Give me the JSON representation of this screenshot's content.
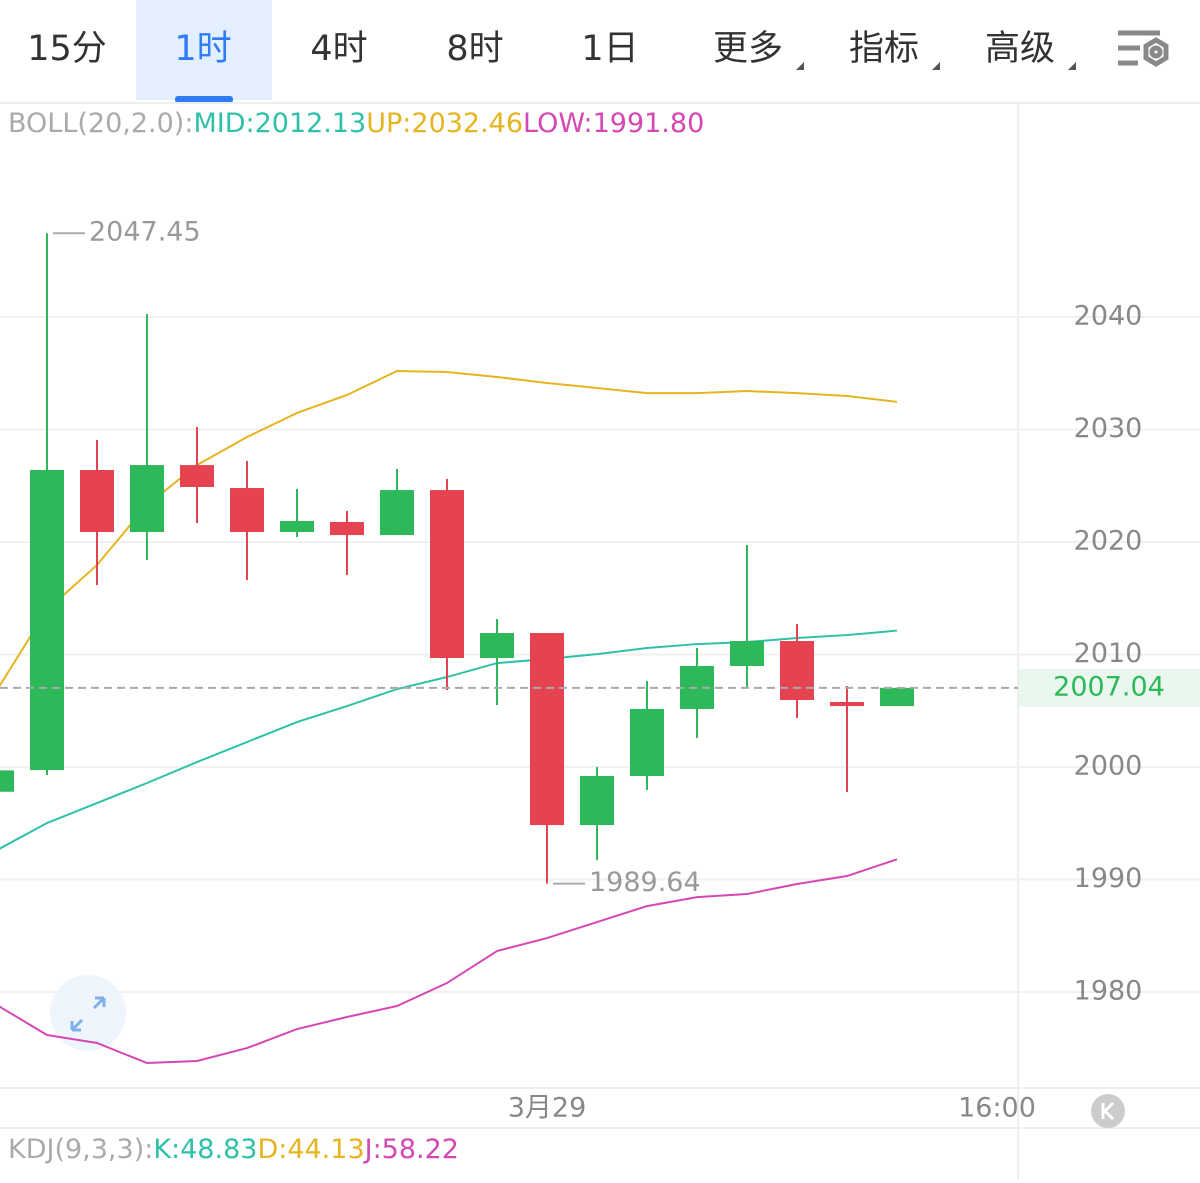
{
  "tabs": [
    "15分",
    "1时",
    "4时",
    "8时",
    "1日",
    "更多",
    "指标",
    "高级"
  ],
  "active_tab": 1,
  "indicator": {
    "name": "BOLL(20,2.0):"
  },
  "sub_indicator": {
    "name": "KDJ(9,3,3):",
    "items": [
      "K:48.83",
      "D:44.13",
      "J:58.22"
    ]
  },
  "chart_data": {
    "type": "candlestick",
    "categories": [
      null,
      null,
      null,
      null,
      null,
      null,
      null,
      null,
      null,
      null,
      null,
      "3月29",
      null,
      null,
      null,
      null,
      null,
      null,
      null,
      null,
      "16:00"
    ],
    "open": [
      1997.8,
      1999.73,
      2026.4,
      2020.89,
      2026.84,
      2024.8,
      2020.89,
      2021.78,
      2020.62,
      2024.62,
      2009.69,
      2011.91,
      1994.84,
      1999.2,
      2005.16,
      2008.98,
      2011.2,
      2005.78,
      2005.42,
      null,
      null
    ],
    "high": [
      1999.7,
      2047.45,
      2029.07,
      2040.27,
      2030.22,
      2027.2,
      2024.71,
      2022.76,
      2026.49,
      2025.6,
      2013.16,
      2011.91,
      2000,
      2007.64,
      2010.58,
      2019.73,
      2012.71,
      2007.2,
      2007.04,
      null,
      null
    ],
    "low": [
      1997.8,
      1999.29,
      2016.18,
      2018.4,
      2021.69,
      2016.62,
      2020.44,
      2017.07,
      2020.62,
      2006.84,
      2005.51,
      1989.64,
      1991.73,
      1997.96,
      2002.58,
      2007.11,
      2004.36,
      1997.78,
      2005.42,
      null,
      null
    ],
    "close": [
      1999.7,
      2026.4,
      2020.89,
      2026.84,
      2024.89,
      2020.89,
      2021.87,
      2020.62,
      2024.62,
      2009.69,
      2011.91,
      1994.84,
      1999.2,
      2005.16,
      2008.98,
      2011.2,
      2005.96,
      2005.42,
      2007.04,
      null,
      null
    ],
    "up_color": "#2db85a",
    "down_color": "#e5434f",
    "series": [
      {
        "name": "MID:2012.13",
        "color": "#2fc1a8",
        "values": [
          1992.62,
          1995.02,
          1996.8,
          1998.58,
          2000.44,
          2002.22,
          2004,
          2005.42,
          2006.93,
          2008,
          2009.24,
          2009.6,
          2010.04,
          2010.58,
          2010.93,
          2011.11,
          2011.47,
          2011.73,
          2012.13,
          null,
          null
        ]
      },
      {
        "name": "UP:2032.46",
        "color": "#e6b420",
        "values": [
          2006.84,
          2013.96,
          2017.96,
          2023.29,
          2026.84,
          2029.33,
          2031.47,
          2033.07,
          2035.2,
          2035.11,
          2034.67,
          2034.13,
          2033.69,
          2033.24,
          2033.24,
          2033.42,
          2033.24,
          2032.98,
          2032.46,
          null,
          null
        ]
      },
      {
        "name": "LOW:1991.80",
        "color": "#d548b4",
        "values": [
          1978.84,
          1976.18,
          1975.47,
          1973.69,
          1973.87,
          1975.02,
          1976.71,
          1977.78,
          1978.76,
          1980.8,
          1983.64,
          1984.8,
          1986.22,
          1987.64,
          1988.44,
          1988.71,
          1989.6,
          1990.31,
          1991.8,
          null,
          null
        ]
      }
    ],
    "ylim": [
      1971.47,
      2059.29
    ],
    "yticks": [
      1980,
      1990,
      2000,
      2010,
      2020,
      2030,
      2040
    ],
    "grid": true
  }
}
